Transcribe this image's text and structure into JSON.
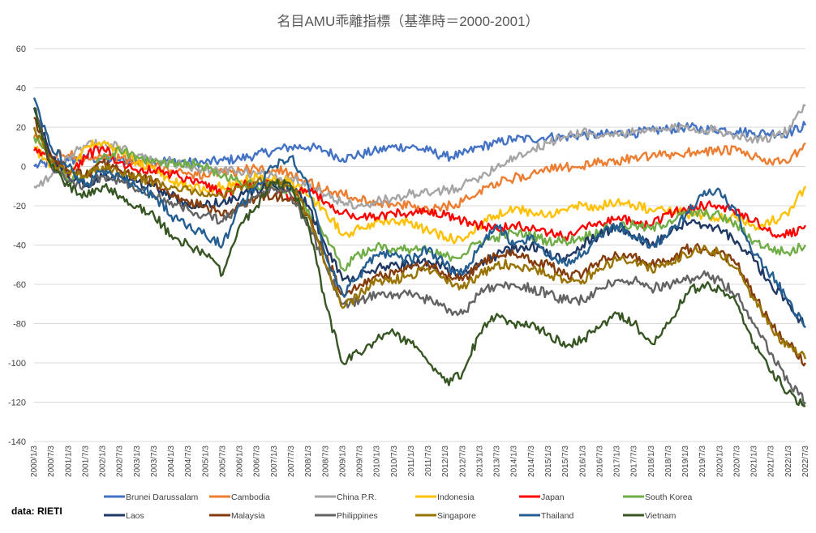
{
  "chart_data": {
    "type": "line",
    "title": "名目AMU乖離指標（基準時＝2000-2001）",
    "source": "data: RIETI",
    "ylim": [
      -140,
      60
    ],
    "yticks": [
      60,
      40,
      20,
      0,
      -20,
      -40,
      -60,
      -80,
      -100,
      -120,
      -140
    ],
    "grid": true,
    "legend_position": "bottom",
    "x": [
      "2000/1/3",
      "2000/7/3",
      "2001/1/3",
      "2001/7/3",
      "2002/1/3",
      "2002/7/3",
      "2003/1/3",
      "2003/7/3",
      "2004/1/3",
      "2004/7/3",
      "2005/1/3",
      "2005/7/3",
      "2006/1/3",
      "2006/7/3",
      "2007/1/3",
      "2007/7/3",
      "2008/1/3",
      "2008/7/3",
      "2009/1/3",
      "2009/7/3",
      "2010/1/3",
      "2010/7/3",
      "2011/1/3",
      "2011/7/3",
      "2012/1/3",
      "2012/7/3",
      "2013/1/3",
      "2013/7/3",
      "2014/1/3",
      "2014/7/3",
      "2015/1/3",
      "2015/7/3",
      "2016/1/3",
      "2016/7/3",
      "2017/1/3",
      "2017/7/3",
      "2018/1/3",
      "2018/7/3",
      "2019/1/3",
      "2019/7/3",
      "2020/1/3",
      "2020/7/3",
      "2021/1/3",
      "2021/7/3",
      "2022/1/3",
      "2022/7/3"
    ],
    "series": [
      {
        "name": "Brunei Darussalam",
        "color": "#4472c4",
        "values": [
          0,
          2,
          3,
          4,
          4,
          3,
          3,
          3,
          3,
          2,
          2,
          3,
          4,
          6,
          8,
          10,
          10,
          8,
          4,
          6,
          8,
          10,
          10,
          8,
          5,
          6,
          10,
          12,
          14,
          14,
          15,
          15,
          16,
          16,
          17,
          17,
          18,
          19,
          20,
          19,
          19,
          18,
          17,
          17,
          17,
          21
        ]
      },
      {
        "name": "Cambodia",
        "color": "#ed7d31",
        "values": [
          15,
          6,
          6,
          5,
          5,
          4,
          2,
          0,
          -2,
          -3,
          -5,
          -3,
          -2,
          -1,
          -2,
          -3,
          -8,
          -12,
          -14,
          -17,
          -18,
          -20,
          -20,
          -22,
          -20,
          -18,
          -12,
          -8,
          -6,
          -4,
          -2,
          0,
          0,
          2,
          3,
          4,
          5,
          6,
          7,
          8,
          8,
          8,
          5,
          2,
          2,
          12
        ]
      },
      {
        "name": "China P.R.",
        "color": "#a5a5a5",
        "values": [
          -10,
          -5,
          5,
          10,
          12,
          10,
          5,
          3,
          2,
          0,
          -2,
          -2,
          -3,
          -4,
          -5,
          -6,
          -10,
          -15,
          -18,
          -20,
          -18,
          -16,
          -14,
          -14,
          -12,
          -10,
          -5,
          0,
          5,
          8,
          12,
          15,
          18,
          15,
          17,
          17,
          18,
          19,
          20,
          19,
          18,
          16,
          14,
          15,
          18,
          31
        ]
      },
      {
        "name": "Indonesia",
        "color": "#ffc000",
        "values": [
          10,
          0,
          -5,
          10,
          12,
          8,
          2,
          0,
          -8,
          -10,
          -12,
          -10,
          -8,
          -5,
          -5,
          -8,
          -15,
          -22,
          -35,
          -32,
          -28,
          -27,
          -28,
          -33,
          -36,
          -38,
          -30,
          -25,
          -22,
          -23,
          -24,
          -22,
          -20,
          -20,
          -18,
          -20,
          -22,
          -22,
          -24,
          -25,
          -26,
          -26,
          -30,
          -28,
          -25,
          -10
        ]
      },
      {
        "name": "Japan",
        "color": "#ff0000",
        "values": [
          8,
          5,
          -5,
          5,
          10,
          2,
          -2,
          -2,
          -4,
          -6,
          -8,
          -15,
          -10,
          -8,
          -10,
          -15,
          -12,
          -18,
          -24,
          -26,
          -26,
          -24,
          -23,
          -24,
          -25,
          -28,
          -30,
          -32,
          -30,
          -32,
          -34,
          -36,
          -30,
          -28,
          -27,
          -28,
          -30,
          -24,
          -22,
          -20,
          -20,
          -22,
          -28,
          -34,
          -35,
          -30
        ]
      },
      {
        "name": "South Korea",
        "color": "#70ad47",
        "values": [
          15,
          5,
          -8,
          -5,
          5,
          8,
          5,
          2,
          2,
          2,
          0,
          -5,
          -8,
          -10,
          -10,
          -12,
          -22,
          -35,
          -52,
          -45,
          -40,
          -42,
          -42,
          -43,
          -46,
          -45,
          -38,
          -36,
          -34,
          -35,
          -38,
          -38,
          -36,
          -33,
          -30,
          -30,
          -32,
          -28,
          -24,
          -24,
          -25,
          -30,
          -38,
          -42,
          -44,
          -40
        ]
      },
      {
        "name": "Laos",
        "color": "#1f3864",
        "values": [
          30,
          5,
          -5,
          -10,
          -5,
          -5,
          -8,
          -10,
          -15,
          -20,
          -20,
          -18,
          -15,
          -12,
          -10,
          -10,
          -20,
          -40,
          -58,
          -55,
          -52,
          -50,
          -50,
          -48,
          -52,
          -55,
          -50,
          -45,
          -42,
          -40,
          -45,
          -48,
          -40,
          -35,
          -30,
          -35,
          -40,
          -35,
          -28,
          -30,
          -32,
          -38,
          -48,
          -60,
          -70,
          -82
        ]
      },
      {
        "name": "Malaysia",
        "color": "#843c0c",
        "values": [
          25,
          5,
          -2,
          -5,
          2,
          -2,
          -5,
          -8,
          -15,
          -18,
          -20,
          -25,
          -20,
          -16,
          -15,
          -16,
          -25,
          -45,
          -65,
          -60,
          -55,
          -55,
          -52,
          -50,
          -55,
          -58,
          -50,
          -45,
          -45,
          -48,
          -50,
          -55,
          -55,
          -48,
          -45,
          -45,
          -50,
          -48,
          -42,
          -42,
          -44,
          -50,
          -65,
          -80,
          -90,
          -100
        ]
      },
      {
        "name": "Philippines",
        "color": "#636363",
        "values": [
          30,
          0,
          -8,
          -10,
          -5,
          -8,
          -12,
          -15,
          -18,
          -22,
          -25,
          -28,
          -20,
          -15,
          -12,
          -15,
          -30,
          -50,
          -70,
          -68,
          -65,
          -65,
          -65,
          -68,
          -72,
          -75,
          -65,
          -60,
          -60,
          -62,
          -65,
          -68,
          -68,
          -62,
          -58,
          -58,
          -62,
          -60,
          -58,
          -55,
          -58,
          -65,
          -80,
          -95,
          -110,
          -120
        ]
      },
      {
        "name": "Singapore",
        "color": "#997300",
        "values": [
          20,
          2,
          -3,
          -5,
          0,
          -3,
          -5,
          -8,
          -10,
          -12,
          -15,
          -15,
          -10,
          -8,
          -8,
          -10,
          -25,
          -50,
          -72,
          -65,
          -58,
          -58,
          -55,
          -52,
          -58,
          -62,
          -55,
          -50,
          -50,
          -52,
          -55,
          -58,
          -58,
          -52,
          -48,
          -48,
          -52,
          -50,
          -45,
          -42,
          -44,
          -52,
          -68,
          -82,
          -92,
          -98
        ]
      },
      {
        "name": "Thailand",
        "color": "#255e91",
        "values": [
          35,
          10,
          0,
          -10,
          -2,
          -5,
          -10,
          -15,
          -25,
          -30,
          -35,
          -40,
          -20,
          -10,
          0,
          5,
          -10,
          -45,
          -65,
          -55,
          -45,
          -45,
          -48,
          -42,
          -50,
          -55,
          -40,
          -30,
          -40,
          -35,
          -45,
          -50,
          -45,
          -35,
          -30,
          -35,
          -40,
          -35,
          -25,
          -15,
          -12,
          -25,
          -45,
          -55,
          -68,
          -82
        ]
      },
      {
        "name": "Vietnam",
        "color": "#375623",
        "values": [
          30,
          0,
          -10,
          -15,
          -10,
          -15,
          -20,
          -25,
          -35,
          -40,
          -45,
          -55,
          -30,
          -20,
          -8,
          -10,
          -30,
          -70,
          -100,
          -95,
          -88,
          -85,
          -90,
          -100,
          -110,
          -105,
          -85,
          -75,
          -80,
          -80,
          -85,
          -92,
          -88,
          -82,
          -75,
          -80,
          -90,
          -80,
          -65,
          -60,
          -62,
          -70,
          -90,
          -105,
          -115,
          -122
        ]
      }
    ]
  }
}
